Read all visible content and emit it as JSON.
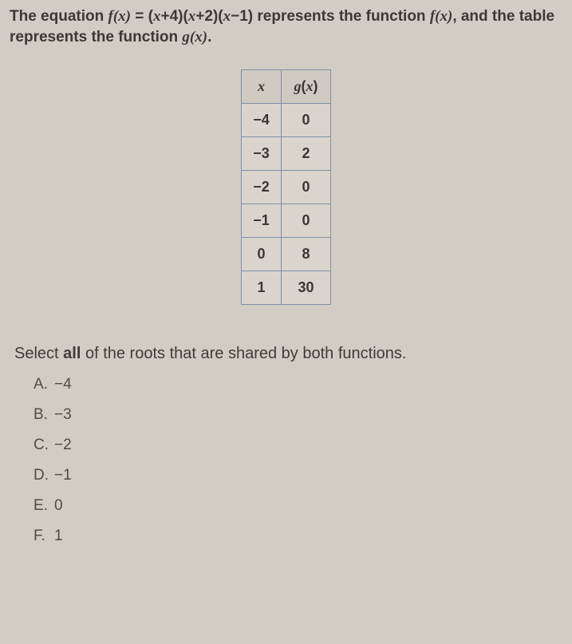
{
  "stem": {
    "part1": "The equation ",
    "eq_lhs": "f(x)",
    "eq_mid": " = (",
    "eq_t1": "x",
    "eq_t1b": "+4)(",
    "eq_t2": "x",
    "eq_t2b": "+2)(",
    "eq_t3": "x",
    "eq_t3b": "−1) represents the function ",
    "eq_fx": "f(x)",
    "part2": ", and the table represents the function ",
    "eq_gx": "g(x)",
    "part3": "."
  },
  "table": {
    "header_x": "x",
    "header_gx_g": "g",
    "header_gx_paren": "(x)",
    "rows": [
      {
        "x": "−4",
        "gx": "0"
      },
      {
        "x": "−3",
        "gx": "2"
      },
      {
        "x": "−2",
        "gx": "0"
      },
      {
        "x": "−1",
        "gx": "0"
      },
      {
        "x": "0",
        "gx": "8"
      },
      {
        "x": "1",
        "gx": "30"
      }
    ],
    "border_color": "#7e8fa3",
    "background_color": "#d9d5cd",
    "font_size": 18
  },
  "instruction": {
    "pre": "Select ",
    "bold": "all",
    "post": " of the roots that are shared by both functions."
  },
  "options": [
    {
      "letter": "A.",
      "text": "−4"
    },
    {
      "letter": "B.",
      "text": "−3"
    },
    {
      "letter": "C.",
      "text": "−2"
    },
    {
      "letter": "D.",
      "text": "−1"
    },
    {
      "letter": "E.",
      "text": "0"
    },
    {
      "letter": "F.",
      "text": "1"
    }
  ],
  "colors": {
    "page_bg": "#d2cdc4",
    "text": "#3a3632"
  }
}
